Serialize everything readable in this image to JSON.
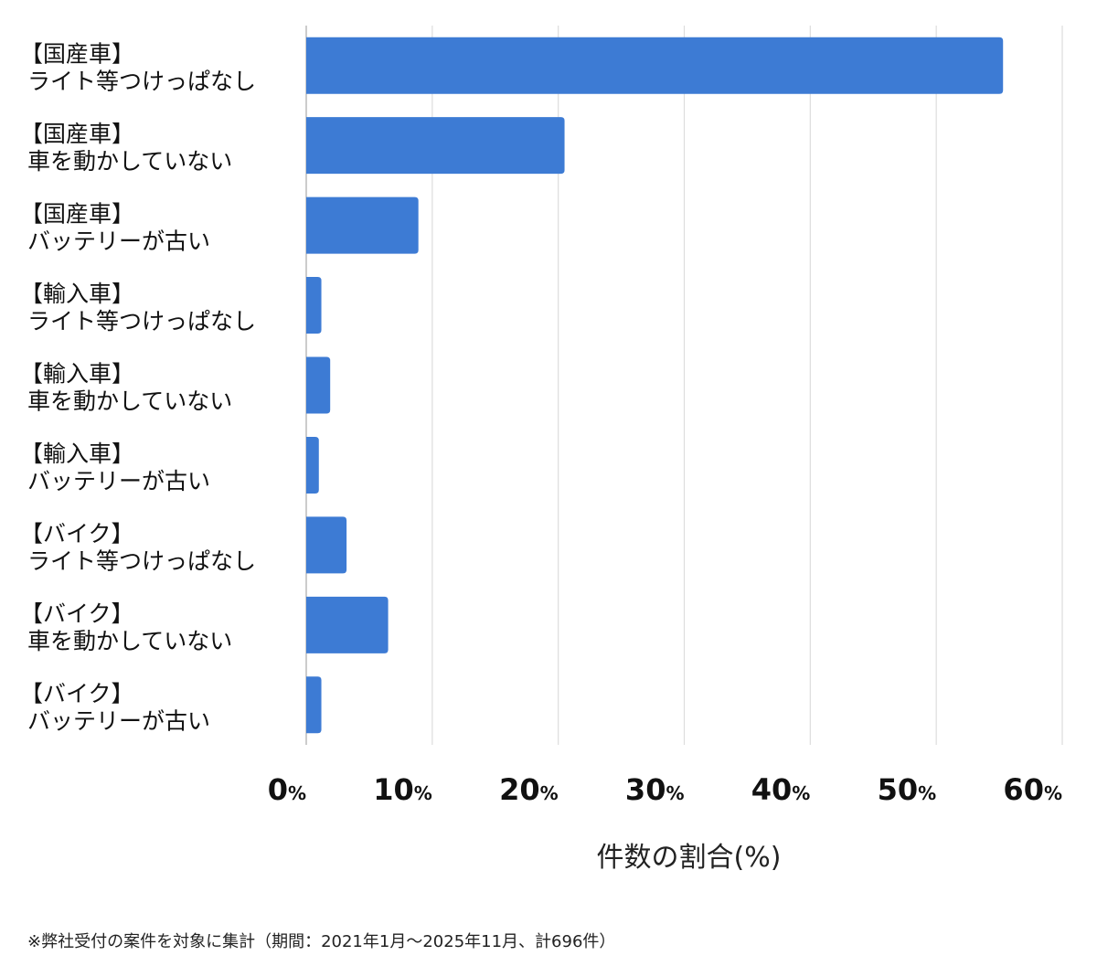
{
  "chart_data": {
    "type": "bar",
    "orientation": "horizontal",
    "categories": [
      [
        "【国産車】",
        "ライト等つけっぱなし"
      ],
      [
        "【国産車】",
        "車を動かしていない"
      ],
      [
        "【国産車】",
        "バッテリーが古い"
      ],
      [
        "【輸入車】",
        "ライト等つけっぱなし"
      ],
      [
        "【輸入車】",
        "車を動かしていない"
      ],
      [
        "【輸入車】",
        "バッテリーが古い"
      ],
      [
        "【バイク】",
        "ライト等つけっぱなし"
      ],
      [
        "【バイク】",
        "車を動かしていない"
      ],
      [
        "【バイク】",
        "バッテリーが古い"
      ]
    ],
    "values": [
      55.3,
      20.5,
      8.9,
      1.2,
      1.9,
      1.0,
      3.2,
      6.5,
      1.2
    ],
    "xlim": [
      0,
      60
    ],
    "xticks": [
      0,
      10,
      20,
      30,
      40,
      50,
      60
    ],
    "tick_suffix": "%",
    "xlabel": "件数の割合(%)",
    "ylabel": "",
    "grid": true,
    "bar_color": "#3d7bd4"
  },
  "footnote": "※弊社受付の案件を対象に集計（期間：2021年1月〜2025年11月、計696件）"
}
